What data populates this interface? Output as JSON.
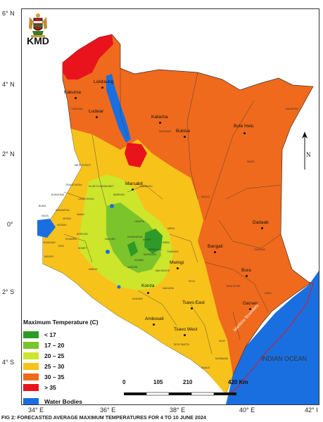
{
  "header": {
    "agency": "KMD",
    "caption": "FIG 2: FORECASTED AVERAGE MAXIMUM TEMPERATURES FOR 4 TO 10 JUNE 2024"
  },
  "lat_labels": [
    "6° N",
    "4° N",
    "2° N",
    "0°",
    "2° S",
    "4° S"
  ],
  "lon_labels": [
    "34° E",
    "36° E",
    "38° E",
    "40° E",
    "42° I"
  ],
  "legend": {
    "title": "Maximum Temperature (C)",
    "items": [
      {
        "label": "< 17",
        "color": "#2e9b28"
      },
      {
        "label": "17 – 20",
        "color": "#7cc42b"
      },
      {
        "label": "20 – 25",
        "color": "#cde52b"
      },
      {
        "label": "25 – 30",
        "color": "#f7c21a"
      },
      {
        "label": "30 – 35",
        "color": "#ef6a1c"
      },
      {
        "label": "> 35",
        "color": "#e8131b"
      }
    ],
    "water": {
      "label": "Water Bodies",
      "color": "#1a6fe0"
    }
  },
  "scale": {
    "labels": [
      "0",
      "105",
      "210",
      "420 Km"
    ]
  },
  "places": {
    "lokitaung": "Lokitaung",
    "kakuma": "Kakuma",
    "lodwar": "Lodwar",
    "kalacha": "Kalacha",
    "bubisa": "Bubisa",
    "butehelu": "Bute Helu",
    "marsabit": "Marsabit",
    "dadaab": "Dadaab",
    "bangali": "Bangali",
    "mwingi": "Mwingi",
    "bura": "Bura",
    "konza": "Konza",
    "tsavoeast": "Tsavo East",
    "garsen": "Garsen",
    "amboseli": "Amboseli",
    "tsavowest": "Tsavo West",
    "ocean": "INDIAN OCEAN",
    "boundary": "Maritime Boundary"
  },
  "county_labels": {
    "turkana": "TURKANA",
    "marsabit": "MARSABIT",
    "mandera": "MANDERA",
    "wajir": "WAJIR",
    "isiolo": "ISIOLO",
    "garissa": "GARISSA",
    "samburu": "SAMBURU",
    "westpokot": "WEST POKOT",
    "baringo": "BARINGO",
    "laikipia": "LAIKIPIA",
    "meru": "MERU",
    "tharaka": "THARAKA",
    "kitui": "KITUI",
    "tanariver": "TANA RIVER",
    "lamu": "LAMU",
    "kilifi": "KILIFI",
    "kwale": "KWALE",
    "taitataveta": "TAITA TAVETA",
    "kajiado": "KAJIADO",
    "narok": "NAROK",
    "makueni": "MAKUENI",
    "machakos": "MACHAKOS",
    "nakuru": "NAKURU",
    "nyandarua": "NYANDARUA",
    "embu": "EMBU",
    "kirinyaga": "KIRINYAGA",
    "nyeri": "NYERI",
    "kiambu": "KIAMBU",
    "migori": "MIGORI",
    "kisii": "KISII",
    "bomet": "BOMET",
    "kericho": "KERICHO",
    "kisumu": "KISUMU",
    "siaya": "SIAYA",
    "busia": "BUSIA",
    "bungoma": "BUNGOMA",
    "kakamega": "KAKAMEGA",
    "vihiga": "VIHIGA",
    "nandi": "NANDI",
    "uasingishu": "UASIN GISHU",
    "transnzoia": "TRANS NZOIA",
    "elgeyo": "ELGEYO MARAKWET",
    "homabay": "HOMA BAY",
    "nyamira": "NYAMIRA",
    "muranga": "MURANGA",
    "nairobi": "NAIROBI",
    "mombasa": "MOMBASA"
  }
}
